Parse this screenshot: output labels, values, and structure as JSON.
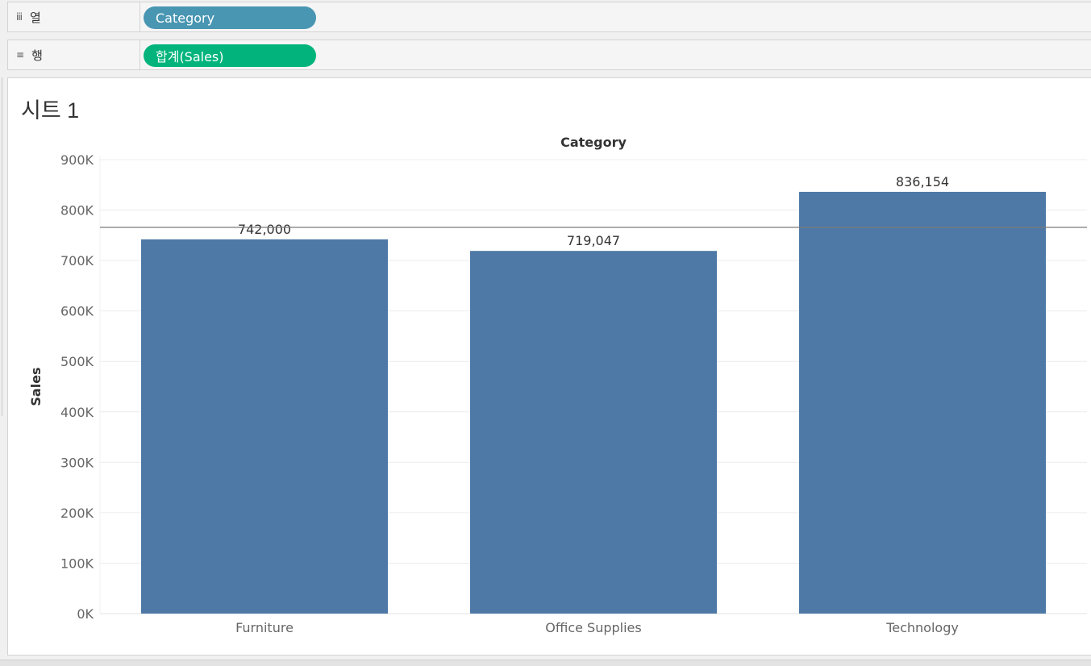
{
  "shelves": {
    "columns": {
      "label": "열",
      "icon": "columns-icon",
      "pill": "Category",
      "pill_color": "#4996b2"
    },
    "rows": {
      "label": "행",
      "icon": "rows-icon",
      "pill": "합계(Sales)",
      "pill_color": "#02b47c"
    }
  },
  "sheet": {
    "title": "시트 1"
  },
  "chart_data": {
    "type": "bar",
    "title": "Category",
    "xlabel": "",
    "ylabel": "Sales",
    "categories": [
      "Furniture",
      "Office Supplies",
      "Technology"
    ],
    "values": [
      742000,
      719047,
      836154
    ],
    "value_labels": [
      "742,000",
      "719,047",
      "836,154"
    ],
    "ylim": [
      0,
      900000
    ],
    "yticks": [
      0,
      100000,
      200000,
      300000,
      400000,
      500000,
      600000,
      700000,
      800000,
      900000
    ],
    "ytick_labels": [
      "0K",
      "100K",
      "200K",
      "300K",
      "400K",
      "500K",
      "600K",
      "700K",
      "800K",
      "900K"
    ],
    "reference_line": 765734,
    "bar_color": "#4e79a7",
    "grid": true
  }
}
